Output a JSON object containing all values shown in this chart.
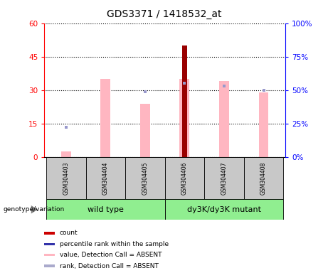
{
  "title": "GDS3371 / 1418532_at",
  "samples": [
    "GSM304403",
    "GSM304404",
    "GSM304405",
    "GSM304406",
    "GSM304407",
    "GSM304408"
  ],
  "pink_bar_values": [
    2.5,
    35.0,
    24.0,
    35.0,
    34.0,
    29.0
  ],
  "blue_square_values": [
    22.0,
    null,
    49.0,
    55.0,
    53.0,
    50.0
  ],
  "red_bar_value": [
    null,
    null,
    null,
    50.0,
    null,
    null
  ],
  "left_ylim": [
    0,
    60
  ],
  "right_ylim": [
    0,
    100
  ],
  "left_yticks": [
    0,
    15,
    30,
    45,
    60
  ],
  "right_yticks": [
    0,
    25,
    50,
    75,
    100
  ],
  "left_ytick_labels": [
    "0",
    "15",
    "30",
    "45",
    "60"
  ],
  "right_ytick_labels": [
    "0%",
    "25%",
    "50%",
    "75%",
    "100%"
  ],
  "group1_label": "wild type",
  "group2_label": "dy3K/dy3K mutant",
  "group_label_prefix": "genotype/variation",
  "pink_color": "#FFB6C1",
  "blue_color": "#9999CC",
  "dark_red_color": "#990000",
  "green_color": "#90EE90",
  "gray_color": "#C8C8C8",
  "bar_width": 0.25,
  "legend_items": [
    {
      "label": "count",
      "color": "#CC0000"
    },
    {
      "label": "percentile rank within the sample",
      "color": "#3333AA"
    },
    {
      "label": "value, Detection Call = ABSENT",
      "color": "#FFB6C1"
    },
    {
      "label": "rank, Detection Call = ABSENT",
      "color": "#AAAACC"
    }
  ]
}
